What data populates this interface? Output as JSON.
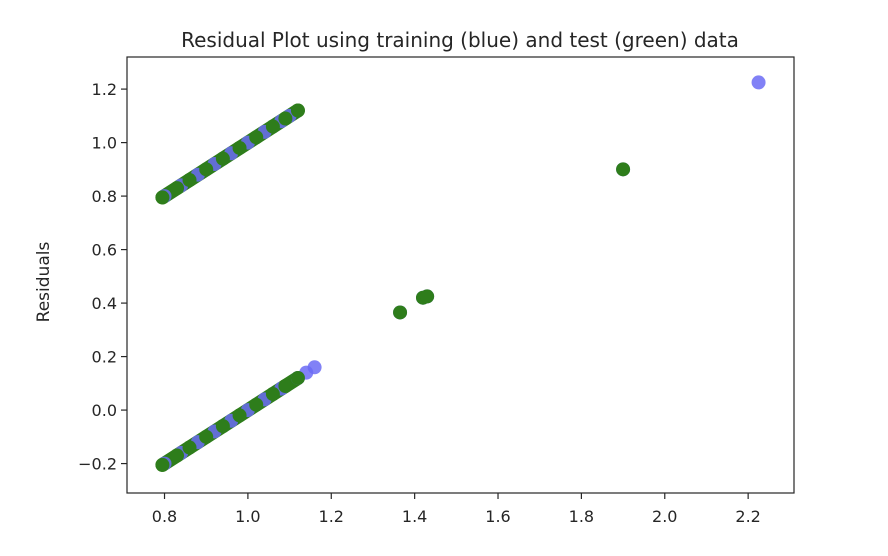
{
  "chart_data": {
    "type": "scatter",
    "title": "Residual Plot using training (blue) and test (green) data",
    "xlabel": "",
    "ylabel": "Residuals",
    "xlim": [
      0.71,
      2.31
    ],
    "ylim": [
      -0.31,
      1.32
    ],
    "x_ticks": [
      0.8,
      1.0,
      1.2,
      1.4,
      1.6,
      1.8,
      2.0,
      2.2
    ],
    "x_tick_labels": [
      "0.8",
      "1.0",
      "1.2",
      "1.4",
      "1.6",
      "1.8",
      "2.0",
      "2.2"
    ],
    "y_ticks": [
      -0.2,
      0.0,
      0.2,
      0.4,
      0.6,
      0.8,
      1.0,
      1.2
    ],
    "y_tick_labels": [
      "−0.2",
      "0.0",
      "0.2",
      "0.4",
      "0.6",
      "0.8",
      "1.0",
      "1.2"
    ],
    "grid": false,
    "legend": "none",
    "series": [
      {
        "color": "#6b6bf5",
        "alpha": 0.85,
        "points": [
          [
            0.8,
            -0.2
          ],
          [
            0.84,
            -0.16
          ],
          [
            0.88,
            -0.12
          ],
          [
            0.92,
            -0.08
          ],
          [
            0.96,
            -0.04
          ],
          [
            1.0,
            0.0
          ],
          [
            1.04,
            0.04
          ],
          [
            1.08,
            0.08
          ],
          [
            1.12,
            0.12
          ],
          [
            1.14,
            0.14
          ],
          [
            1.16,
            0.16
          ],
          [
            0.8,
            0.8
          ],
          [
            0.84,
            0.84
          ],
          [
            0.88,
            0.88
          ],
          [
            0.92,
            0.92
          ],
          [
            0.96,
            0.96
          ],
          [
            1.0,
            1.0
          ],
          [
            1.04,
            1.04
          ],
          [
            1.08,
            1.08
          ],
          [
            1.1,
            1.1
          ],
          [
            1.365,
            0.365
          ],
          [
            1.42,
            0.42
          ],
          [
            1.43,
            0.425
          ],
          [
            1.9,
            0.9
          ],
          [
            2.225,
            1.225
          ]
        ]
      },
      {
        "color": "#2e7d1b",
        "alpha": 1.0,
        "points": [
          [
            0.795,
            -0.205
          ],
          [
            0.83,
            -0.17
          ],
          [
            0.86,
            -0.14
          ],
          [
            0.9,
            -0.1
          ],
          [
            0.94,
            -0.06
          ],
          [
            0.98,
            -0.02
          ],
          [
            1.02,
            0.02
          ],
          [
            1.06,
            0.06
          ],
          [
            1.09,
            0.09
          ],
          [
            1.12,
            0.12
          ],
          [
            0.795,
            0.795
          ],
          [
            0.83,
            0.83
          ],
          [
            0.86,
            0.86
          ],
          [
            0.9,
            0.9
          ],
          [
            0.94,
            0.94
          ],
          [
            0.98,
            0.98
          ],
          [
            1.02,
            1.02
          ],
          [
            1.06,
            1.06
          ],
          [
            1.09,
            1.09
          ],
          [
            1.12,
            1.12
          ],
          [
            1.365,
            0.365
          ],
          [
            1.42,
            0.42
          ],
          [
            1.43,
            0.425
          ],
          [
            1.9,
            0.9
          ]
        ]
      }
    ]
  }
}
